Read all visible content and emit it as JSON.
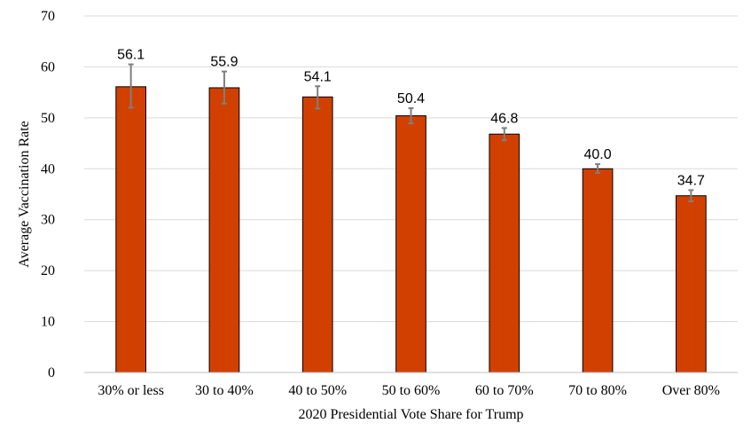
{
  "chart_data": {
    "type": "bar",
    "title": "",
    "xlabel": "2020 Presidential Vote Share for Trump",
    "ylabel": "Average Vaccination Rate",
    "ylim": [
      0,
      70
    ],
    "yticks": [
      0,
      10,
      20,
      30,
      40,
      50,
      60,
      70
    ],
    "grid": true,
    "legend": "none",
    "bar_color": "#d24000",
    "categories": [
      "30% or less",
      "30 to 40%",
      "40 to 50%",
      "50 to 60%",
      "60 to 70%",
      "70 to 80%",
      "Over 80%"
    ],
    "values": [
      56.1,
      55.9,
      54.1,
      50.4,
      46.8,
      40.0,
      34.7
    ],
    "value_labels": [
      "56.1",
      "55.9",
      "54.1",
      "50.4",
      "46.8",
      "40.0",
      "34.7"
    ],
    "error_bars": [
      {
        "low": 52.0,
        "high": 60.5
      },
      {
        "low": 52.8,
        "high": 59.1
      },
      {
        "low": 51.8,
        "high": 56.2
      },
      {
        "low": 48.9,
        "high": 51.9
      },
      {
        "low": 45.6,
        "high": 48.0
      },
      {
        "low": 39.2,
        "high": 40.9
      },
      {
        "low": 33.6,
        "high": 35.8
      }
    ]
  }
}
